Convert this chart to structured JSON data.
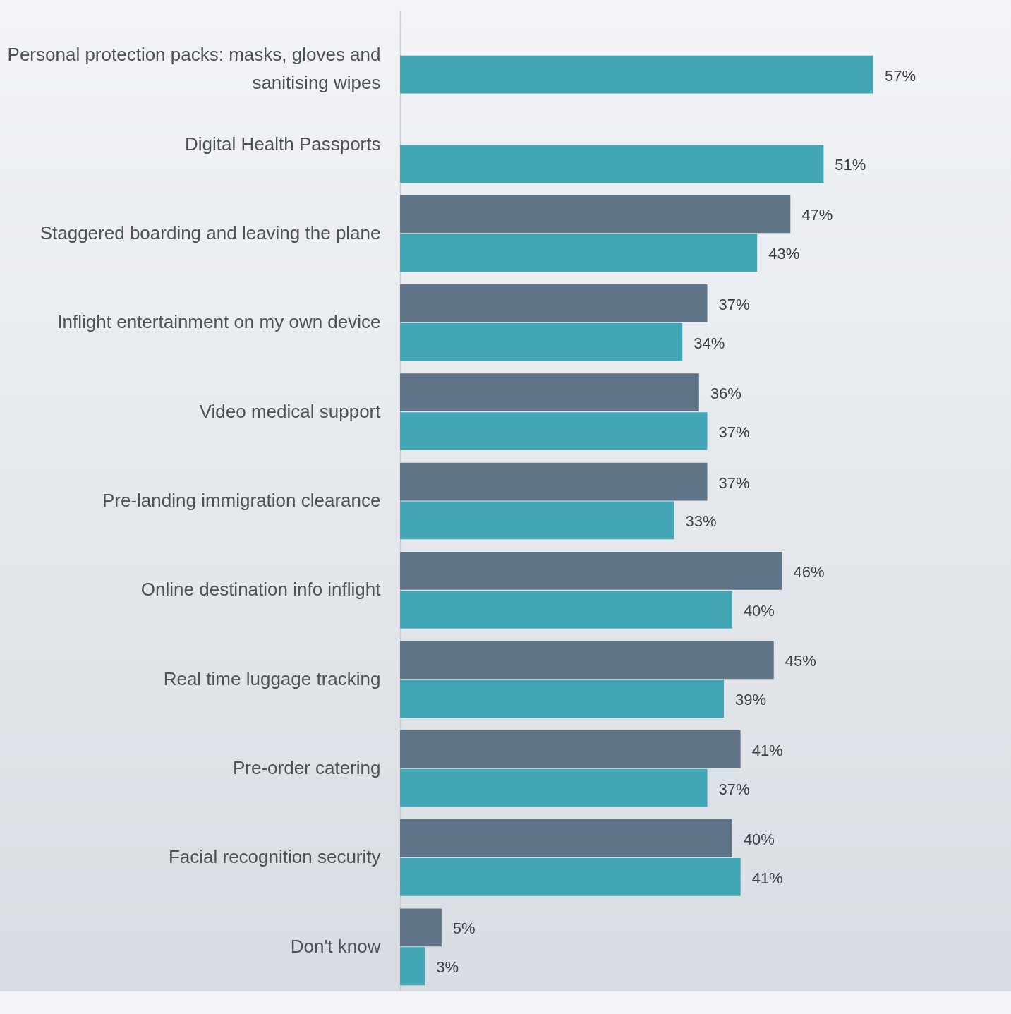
{
  "chart_data": {
    "type": "bar",
    "orientation": "horizontal",
    "tick_labels": "y",
    "grid": false,
    "legend": false,
    "categories": [
      "Personal protection packs: masks, gloves and sanitising wipes",
      "Digital Health Passports",
      "Staggered boarding and leaving the plane",
      "Inflight entertainment on my own device",
      "Video medical support",
      "Pre-landing immigration clearance",
      "Online destination info inflight",
      "Real time luggage tracking",
      "Pre-order catering",
      "Facial recognition security",
      "Don't know"
    ],
    "series": [
      {
        "color": "#5f7587",
        "values": [
          null,
          null,
          47,
          37,
          36,
          37,
          46,
          45,
          41,
          40,
          5
        ],
        "value_labels": [
          null,
          null,
          "47%",
          "37%",
          "36%",
          "37%",
          "46%",
          "45%",
          "41%",
          "40%",
          "5%"
        ]
      },
      {
        "color": "#43a6b5",
        "values": [
          57,
          51,
          43,
          34,
          37,
          33,
          40,
          39,
          37,
          41,
          3
        ],
        "value_labels": [
          "57%",
          "51%",
          "43%",
          "34%",
          "37%",
          "33%",
          "40%",
          "39%",
          "37%",
          "41%",
          "3%"
        ]
      }
    ]
  }
}
